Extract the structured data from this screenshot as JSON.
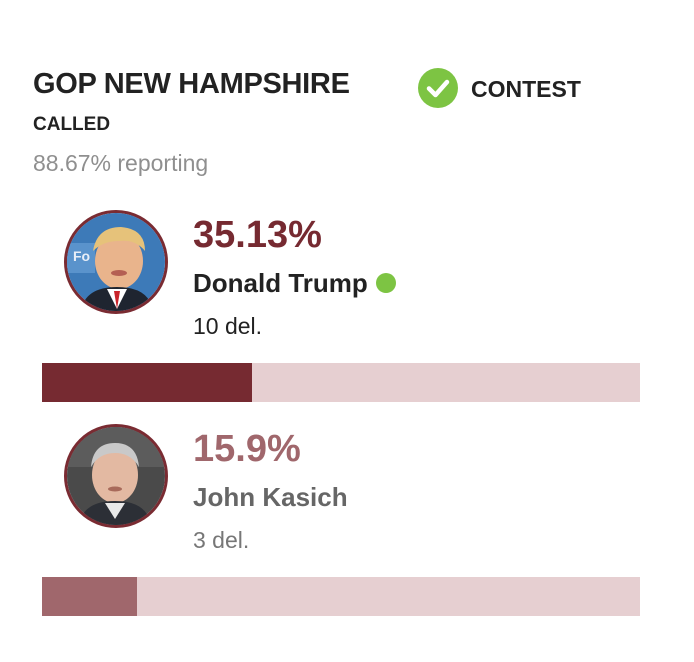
{
  "race": {
    "title": "GOP NEW HAMPSHIRE",
    "status_word": "CONTEST",
    "status_line2": "CALLED",
    "reporting": "88.67% reporting"
  },
  "colors": {
    "winner": "#762a31",
    "second": "#a0676c",
    "bar_track": "#e6cfd1",
    "called_check": "#7dc443"
  },
  "candidates": [
    {
      "pct": "35.13%",
      "name": "Donald Trump",
      "delegates": "10 del.",
      "bar_fraction": 0.351,
      "winner": true
    },
    {
      "pct": "15.9%",
      "name": "John Kasich",
      "delegates": "3 del.",
      "bar_fraction": 0.159,
      "winner": false
    }
  ],
  "icons": {
    "called": "check-circle-icon",
    "winner_marker": "green-dot-icon"
  }
}
